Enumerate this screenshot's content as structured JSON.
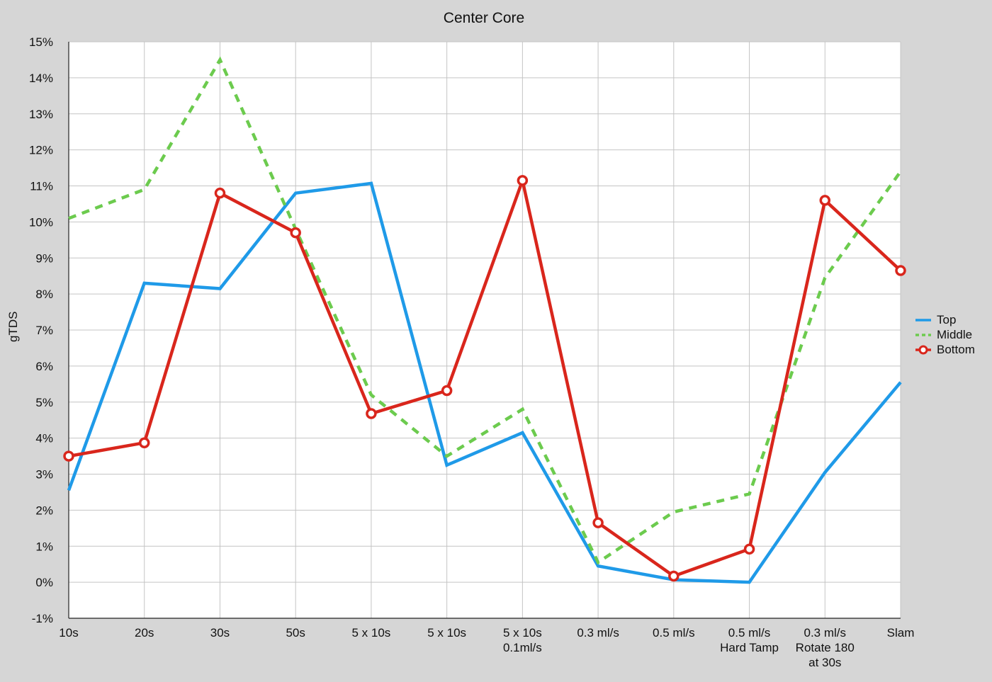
{
  "chart_data": {
    "type": "line",
    "title": "Center Core",
    "xlabel": "",
    "ylabel": "gTDS",
    "categories": [
      [
        "10s"
      ],
      [
        "20s"
      ],
      [
        "30s"
      ],
      [
        "50s"
      ],
      [
        "5 x 10s"
      ],
      [
        "5 x 10s"
      ],
      [
        "5 x 10s",
        "0.1ml/s"
      ],
      [
        "0.3 ml/s"
      ],
      [
        "0.5 ml/s"
      ],
      [
        "0.5 ml/s",
        "Hard Tamp"
      ],
      [
        "0.3 ml/s",
        "Rotate 180",
        "at 30s"
      ],
      [
        "Slam"
      ]
    ],
    "yticks": [
      "15%",
      "14%",
      "13%",
      "12%",
      "11%",
      "10%",
      "9%",
      "8%",
      "7%",
      "6%",
      "5%",
      "4%",
      "3%",
      "2%",
      "1%",
      "0%",
      "-1%"
    ],
    "ylim": [
      -1,
      15
    ],
    "grid": true,
    "legend_position": "right",
    "series": [
      {
        "name": "Top",
        "color": "#1f9ae8",
        "style": "solid",
        "marker": "none",
        "values": [
          2.55,
          8.3,
          8.15,
          10.8,
          11.07,
          3.25,
          4.15,
          0.45,
          0.07,
          0.0,
          3.05,
          5.55
        ]
      },
      {
        "name": "Middle",
        "color": "#6ccb4e",
        "style": "dashed",
        "marker": "none",
        "values": [
          10.1,
          10.9,
          14.5,
          9.8,
          5.2,
          3.5,
          4.8,
          0.55,
          1.95,
          2.45,
          8.45,
          11.4
        ]
      },
      {
        "name": "Bottom",
        "color": "#d9261c",
        "style": "solid",
        "marker": "circle",
        "values": [
          3.5,
          3.87,
          10.8,
          9.7,
          4.68,
          5.32,
          11.15,
          1.65,
          0.17,
          0.92,
          10.6,
          8.65
        ]
      }
    ]
  }
}
